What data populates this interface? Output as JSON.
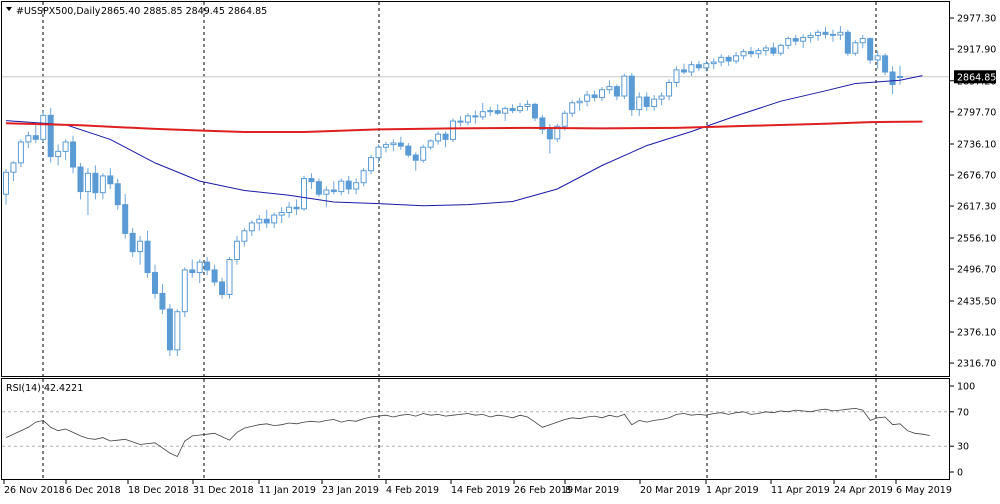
{
  "header": {
    "symbol_line": "#USSPX500,Daily",
    "ohlc": "2865.40 2885.85 2849.45 2864.85",
    "rsi_label": "RSI(14) 42.4221"
  },
  "colors": {
    "candle": "#5b9bd5",
    "candle_wick": "#6ea6d8",
    "ma_fast": "#1a1aa8",
    "ma_slow": "#e02020",
    "rsi_line": "#404040",
    "grid_dashed": "#000000",
    "level_dashed": "#b0b0b0",
    "price_tag_bg": "#000000",
    "price_tag_text": "#ffffff"
  },
  "chart_data": [
    {
      "type": "candlestick",
      "title": "#USSPX500,Daily",
      "ylim": [
        2290,
        3008
      ],
      "y_ticks": [
        "2977.30",
        "2917.90",
        "2857.20",
        "2797.70",
        "2736.10",
        "2676.70",
        "2617.30",
        "2556.10",
        "2496.70",
        "2435.50",
        "2376.10",
        "2316.70"
      ],
      "x_ticks": [
        "26 Nov 2018",
        "6 Dec 2018",
        "18 Dec 2018",
        "31 Dec 2018",
        "11 Jan 2019",
        "23 Jan 2019",
        "4 Feb 2019",
        "14 Feb 2019",
        "26 Feb 2019",
        "8 Mar 2019",
        "20 Mar 2019",
        "1 Apr 2019",
        "11 Apr 2019",
        "24 Apr 2019",
        "6 May 2019"
      ],
      "current_price": "2864.85",
      "candles": [
        [
          2640,
          2688,
          2620,
          2682
        ],
        [
          2682,
          2703,
          2665,
          2700
        ],
        [
          2700,
          2745,
          2692,
          2740
        ],
        [
          2740,
          2760,
          2728,
          2752
        ],
        [
          2752,
          2775,
          2738,
          2745
        ],
        [
          2745,
          2800,
          2740,
          2791
        ],
        [
          2791,
          2805,
          2700,
          2712
        ],
        [
          2712,
          2735,
          2695,
          2722
        ],
        [
          2722,
          2745,
          2705,
          2740
        ],
        [
          2740,
          2752,
          2680,
          2692
        ],
        [
          2692,
          2700,
          2630,
          2645
        ],
        [
          2645,
          2690,
          2600,
          2680
        ],
        [
          2680,
          2695,
          2630,
          2643
        ],
        [
          2643,
          2680,
          2630,
          2675
        ],
        [
          2675,
          2690,
          2650,
          2660
        ],
        [
          2660,
          2670,
          2610,
          2620
        ],
        [
          2620,
          2640,
          2555,
          2565
        ],
        [
          2565,
          2575,
          2520,
          2530
        ],
        [
          2530,
          2560,
          2505,
          2550
        ],
        [
          2550,
          2570,
          2480,
          2490
        ],
        [
          2490,
          2505,
          2440,
          2450
        ],
        [
          2450,
          2468,
          2410,
          2420
        ],
        [
          2420,
          2430,
          2330,
          2342
        ],
        [
          2342,
          2420,
          2330,
          2415
        ],
        [
          2415,
          2500,
          2405,
          2495
        ],
        [
          2495,
          2515,
          2480,
          2490
        ],
        [
          2490,
          2515,
          2470,
          2510
        ],
        [
          2510,
          2520,
          2485,
          2495
        ],
        [
          2495,
          2505,
          2465,
          2472
        ],
        [
          2472,
          2480,
          2440,
          2448
        ],
        [
          2448,
          2520,
          2440,
          2515
        ],
        [
          2515,
          2560,
          2505,
          2550
        ],
        [
          2550,
          2575,
          2540,
          2570
        ],
        [
          2570,
          2590,
          2560,
          2585
        ],
        [
          2585,
          2600,
          2570,
          2592
        ],
        [
          2592,
          2610,
          2575,
          2585
        ],
        [
          2585,
          2605,
          2575,
          2600
        ],
        [
          2600,
          2615,
          2585,
          2605
        ],
        [
          2605,
          2625,
          2595,
          2615
        ],
        [
          2615,
          2630,
          2600,
          2612
        ],
        [
          2612,
          2675,
          2608,
          2670
        ],
        [
          2670,
          2680,
          2650,
          2664
        ],
        [
          2664,
          2670,
          2635,
          2640
        ],
        [
          2640,
          2655,
          2615,
          2648
        ],
        [
          2648,
          2665,
          2640,
          2645
        ],
        [
          2645,
          2670,
          2638,
          2665
        ],
        [
          2665,
          2675,
          2640,
          2650
        ],
        [
          2650,
          2670,
          2640,
          2662
        ],
        [
          2662,
          2690,
          2655,
          2685
        ],
        [
          2685,
          2715,
          2678,
          2710
        ],
        [
          2710,
          2735,
          2700,
          2730
        ],
        [
          2730,
          2740,
          2720,
          2735
        ],
        [
          2735,
          2745,
          2722,
          2738
        ],
        [
          2738,
          2750,
          2725,
          2732
        ],
        [
          2732,
          2738,
          2710,
          2715
        ],
        [
          2715,
          2720,
          2685,
          2705
        ],
        [
          2705,
          2735,
          2700,
          2730
        ],
        [
          2730,
          2745,
          2725,
          2742
        ],
        [
          2742,
          2760,
          2735,
          2755
        ],
        [
          2755,
          2760,
          2730,
          2745
        ],
        [
          2745,
          2785,
          2740,
          2780
        ],
        [
          2780,
          2790,
          2770,
          2778
        ],
        [
          2778,
          2795,
          2772,
          2790
        ],
        [
          2790,
          2800,
          2775,
          2788
        ],
        [
          2788,
          2815,
          2782,
          2798
        ],
        [
          2798,
          2808,
          2790,
          2800
        ],
        [
          2800,
          2812,
          2792,
          2795
        ],
        [
          2795,
          2808,
          2780,
          2804
        ],
        [
          2804,
          2812,
          2795,
          2800
        ],
        [
          2800,
          2815,
          2795,
          2808
        ],
        [
          2808,
          2820,
          2800,
          2812
        ],
        [
          2812,
          2815,
          2780,
          2786
        ],
        [
          2786,
          2792,
          2755,
          2764
        ],
        [
          2764,
          2775,
          2718,
          2746
        ],
        [
          2746,
          2775,
          2740,
          2770
        ],
        [
          2770,
          2800,
          2762,
          2795
        ],
        [
          2795,
          2820,
          2788,
          2815
        ],
        [
          2815,
          2825,
          2800,
          2818
        ],
        [
          2818,
          2838,
          2808,
          2830
        ],
        [
          2830,
          2838,
          2818,
          2825
        ],
        [
          2825,
          2845,
          2818,
          2840
        ],
        [
          2840,
          2858,
          2832,
          2846
        ],
        [
          2846,
          2850,
          2820,
          2828
        ],
        [
          2828,
          2870,
          2822,
          2866
        ],
        [
          2866,
          2872,
          2790,
          2802
        ],
        [
          2802,
          2835,
          2790,
          2826
        ],
        [
          2826,
          2835,
          2800,
          2808
        ],
        [
          2808,
          2830,
          2800,
          2822
        ],
        [
          2822,
          2835,
          2810,
          2828
        ],
        [
          2828,
          2860,
          2820,
          2854
        ],
        [
          2854,
          2885,
          2845,
          2878
        ],
        [
          2878,
          2890,
          2870,
          2874
        ],
        [
          2874,
          2895,
          2866,
          2888
        ],
        [
          2888,
          2895,
          2876,
          2882
        ],
        [
          2882,
          2897,
          2875,
          2890
        ],
        [
          2890,
          2900,
          2880,
          2893
        ],
        [
          2893,
          2908,
          2885,
          2902
        ],
        [
          2902,
          2906,
          2886,
          2895
        ],
        [
          2895,
          2912,
          2890,
          2905
        ],
        [
          2905,
          2918,
          2898,
          2913
        ],
        [
          2913,
          2922,
          2902,
          2909
        ],
        [
          2909,
          2920,
          2900,
          2915
        ],
        [
          2915,
          2925,
          2905,
          2920
        ],
        [
          2920,
          2930,
          2905,
          2910
        ],
        [
          2910,
          2928,
          2905,
          2925
        ],
        [
          2925,
          2942,
          2918,
          2938
        ],
        [
          2938,
          2945,
          2925,
          2933
        ],
        [
          2933,
          2946,
          2920,
          2940
        ],
        [
          2940,
          2950,
          2930,
          2944
        ],
        [
          2944,
          2955,
          2934,
          2950
        ],
        [
          2950,
          2960,
          2938,
          2946
        ],
        [
          2946,
          2955,
          2932,
          2945
        ],
        [
          2945,
          2962,
          2935,
          2950
        ],
        [
          2950,
          2955,
          2905,
          2910
        ],
        [
          2910,
          2935,
          2905,
          2930
        ],
        [
          2930,
          2945,
          2920,
          2938
        ],
        [
          2938,
          2940,
          2890,
          2897
        ],
        [
          2897,
          2915,
          2880,
          2905
        ],
        [
          2905,
          2910,
          2868,
          2874
        ],
        [
          2874,
          2885,
          2832,
          2850
        ],
        [
          2865.4,
          2885.85,
          2849.45,
          2864.85
        ]
      ],
      "series": [
        {
          "name": "",
          "kind": "ma",
          "color_key": "ma_fast",
          "points": [
            [
              0,
              2781
            ],
            [
              8,
              2773
            ],
            [
              14,
              2745
            ],
            [
              20,
              2700
            ],
            [
              26,
              2665
            ],
            [
              32,
              2647
            ],
            [
              38,
              2638
            ],
            [
              44,
              2625
            ],
            [
              50,
              2622
            ],
            [
              56,
              2618
            ],
            [
              62,
              2620
            ],
            [
              68,
              2626
            ],
            [
              74,
              2650
            ],
            [
              80,
              2695
            ],
            [
              86,
              2733
            ],
            [
              92,
              2760
            ],
            [
              98,
              2790
            ],
            [
              104,
              2818
            ],
            [
              110,
              2838
            ],
            [
              114,
              2852
            ],
            [
              120,
              2858
            ],
            [
              123,
              2867
            ]
          ]
        },
        {
          "name": "",
          "kind": "ma",
          "color_key": "ma_slow",
          "points": [
            [
              0,
              2776
            ],
            [
              10,
              2772
            ],
            [
              20,
              2765
            ],
            [
              26,
              2762
            ],
            [
              32,
              2759
            ],
            [
              40,
              2759
            ],
            [
              50,
              2764
            ],
            [
              60,
              2766
            ],
            [
              70,
              2767
            ],
            [
              80,
              2766
            ],
            [
              90,
              2767
            ],
            [
              100,
              2771
            ],
            [
              110,
              2775
            ],
            [
              116,
              2778
            ],
            [
              123,
              2779
            ]
          ]
        }
      ]
    },
    {
      "type": "line",
      "title": "RSI(14) 42.4221",
      "ylim": [
        0,
        100
      ],
      "y_ticks": [
        "100",
        "70",
        "30",
        "0"
      ],
      "levels": [
        70,
        30
      ],
      "values": [
        40,
        44,
        48,
        52,
        58,
        60,
        52,
        48,
        50,
        46,
        42,
        39,
        38,
        40,
        36,
        37,
        38,
        35,
        32,
        33,
        34,
        28,
        22,
        18,
        36,
        42,
        43,
        44,
        45,
        41,
        37,
        46,
        51,
        53,
        55,
        56,
        54,
        55,
        57,
        56,
        58,
        59,
        58,
        60,
        61,
        58,
        60,
        59,
        62,
        64,
        65,
        66,
        64,
        66,
        67,
        65,
        68,
        66,
        67,
        65,
        66,
        67,
        68,
        66,
        67,
        64,
        66,
        65,
        63,
        66,
        64,
        58,
        52,
        55,
        58,
        61,
        63,
        62,
        64,
        65,
        63,
        66,
        64,
        67,
        55,
        60,
        58,
        60,
        61,
        63,
        67,
        68,
        66,
        67,
        66,
        68,
        69,
        67,
        69,
        70,
        67,
        68,
        70,
        69,
        71,
        70,
        72,
        71,
        70,
        72,
        73,
        71,
        72,
        73,
        74,
        72,
        60,
        63,
        64,
        55,
        56,
        48,
        45,
        44,
        42.42
      ]
    }
  ]
}
